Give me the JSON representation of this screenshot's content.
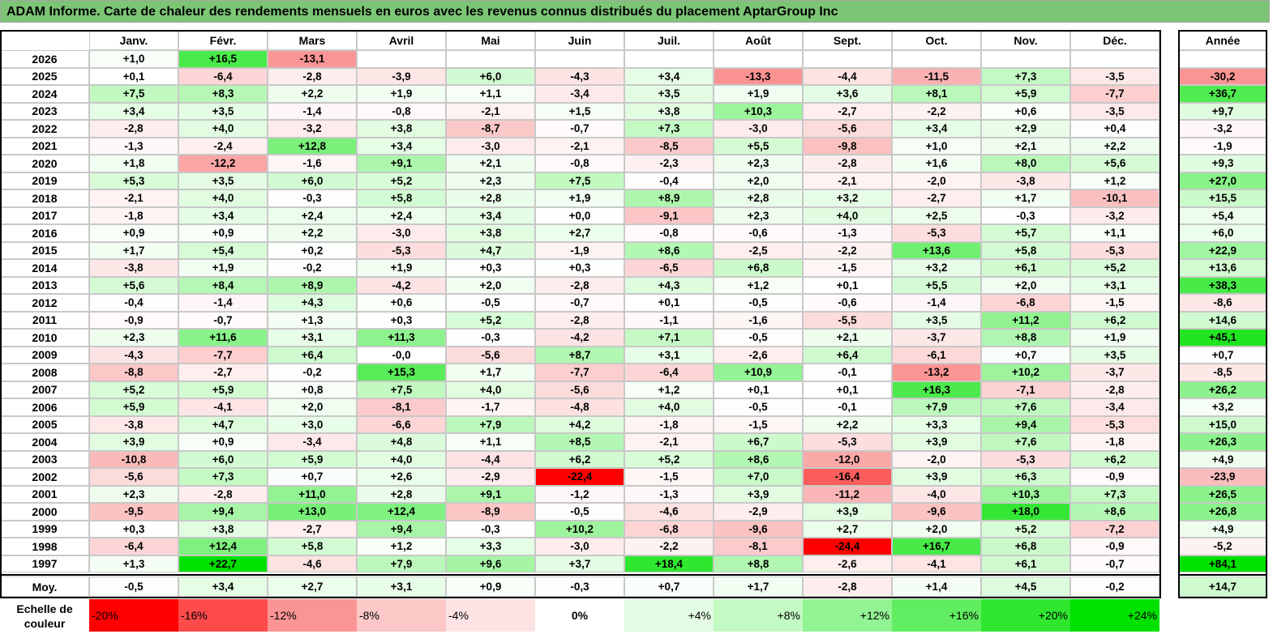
{
  "title": "ADAM Informe. Carte de chaleur des rendements mensuels en euros avec les revenus connus distribués du placement AptarGroup Inc",
  "chart_data": {
    "type": "heatmap",
    "months": [
      "Janv.",
      "Févr.",
      "Mars",
      "Avril",
      "Mai",
      "Juin",
      "Juil.",
      "Août",
      "Sept.",
      "Oct.",
      "Nov.",
      "Déc."
    ],
    "year_header": "Année",
    "rows": [
      {
        "label": "2026",
        "months": [
          "+1,0",
          "+16,5",
          "-13,1",
          "",
          "",
          "",
          "",
          "",
          "",
          "",
          "",
          ""
        ],
        "year": ""
      },
      {
        "label": "2025",
        "months": [
          "+0,1",
          "-6,4",
          "-2,8",
          "-3,9",
          "+6,0",
          "-4,3",
          "+3,4",
          "-13,3",
          "-4,4",
          "-11,5",
          "+7,3",
          "-3,5"
        ],
        "year": "-30,2"
      },
      {
        "label": "2024",
        "months": [
          "+7,5",
          "+8,3",
          "+2,2",
          "+1,9",
          "+1,1",
          "-3,4",
          "+3,5",
          "+1,9",
          "+3,6",
          "+8,1",
          "+5,9",
          "-7,7"
        ],
        "year": "+36,7"
      },
      {
        "label": "2023",
        "months": [
          "+3,4",
          "+3,5",
          "-1,4",
          "-0,8",
          "-2,1",
          "+1,5",
          "+3,8",
          "+10,3",
          "-2,7",
          "-2,2",
          "+0,6",
          "-3,5"
        ],
        "year": "+9,7"
      },
      {
        "label": "2022",
        "months": [
          "-2,8",
          "+4,0",
          "-3,2",
          "+3,8",
          "-8,7",
          "-0,7",
          "+7,3",
          "-3,0",
          "-5,6",
          "+3,4",
          "+2,9",
          "+0,4"
        ],
        "year": "-3,2"
      },
      {
        "label": "2021",
        "months": [
          "-1,3",
          "-2,4",
          "+12,8",
          "+3,4",
          "-3,0",
          "-2,1",
          "-8,5",
          "+5,5",
          "-9,8",
          "+1,0",
          "+2,1",
          "+2,2"
        ],
        "year": "-1,9"
      },
      {
        "label": "2020",
        "months": [
          "+1,8",
          "-12,2",
          "-1,6",
          "+9,1",
          "+2,1",
          "-0,8",
          "-2,3",
          "+2,3",
          "-2,8",
          "+1,6",
          "+8,0",
          "+5,6"
        ],
        "year": "+9,3"
      },
      {
        "label": "2019",
        "months": [
          "+5,3",
          "+3,5",
          "+6,0",
          "+5,2",
          "+2,3",
          "+7,5",
          "-0,4",
          "+2,0",
          "-2,1",
          "-2,0",
          "-3,8",
          "+1,2"
        ],
        "year": "+27,0"
      },
      {
        "label": "2018",
        "months": [
          "-2,1",
          "+4,0",
          "-0,3",
          "+5,8",
          "+2,8",
          "+1,9",
          "+8,9",
          "+2,8",
          "+3,2",
          "-2,7",
          "+1,7",
          "-10,1"
        ],
        "year": "+15,5"
      },
      {
        "label": "2017",
        "months": [
          "-1,8",
          "+3,4",
          "+2,4",
          "+2,4",
          "+3,4",
          "+0,0",
          "-9,1",
          "+2,3",
          "+4,0",
          "+2,5",
          "-0,3",
          "-3,2"
        ],
        "year": "+5,4"
      },
      {
        "label": "2016",
        "months": [
          "+0,9",
          "+0,9",
          "+2,2",
          "-3,0",
          "+3,8",
          "+2,7",
          "-0,8",
          "-0,6",
          "-1,3",
          "-5,3",
          "+5,7",
          "+1,1"
        ],
        "year": "+6,0"
      },
      {
        "label": "2015",
        "months": [
          "+1,7",
          "+5,4",
          "+0,2",
          "-5,3",
          "+4,7",
          "-1,9",
          "+8,6",
          "-2,5",
          "-2,2",
          "+13,6",
          "+5,8",
          "-5,3"
        ],
        "year": "+22,9"
      },
      {
        "label": "2014",
        "months": [
          "-3,8",
          "+1,9",
          "-0,2",
          "+1,9",
          "+0,3",
          "+0,3",
          "-6,5",
          "+6,8",
          "-1,5",
          "+3,2",
          "+6,1",
          "+5,2"
        ],
        "year": "+13,6"
      },
      {
        "label": "2013",
        "months": [
          "+5,6",
          "+8,4",
          "+8,9",
          "-4,2",
          "+2,0",
          "-2,8",
          "+4,3",
          "+1,2",
          "+0,1",
          "+5,5",
          "+2,0",
          "+3,1"
        ],
        "year": "+38,3"
      },
      {
        "label": "2012",
        "months": [
          "-0,4",
          "-1,4",
          "+4,3",
          "+0,6",
          "-0,5",
          "-0,7",
          "+0,1",
          "-0,5",
          "-0,6",
          "-1,4",
          "-6,8",
          "-1,5"
        ],
        "year": "-8,6"
      },
      {
        "label": "2011",
        "months": [
          "-0,9",
          "-0,7",
          "+1,3",
          "+0,3",
          "+5,2",
          "-2,8",
          "-1,1",
          "-1,6",
          "-5,5",
          "+3,5",
          "+11,2",
          "+6,2"
        ],
        "year": "+14,6"
      },
      {
        "label": "2010",
        "months": [
          "+2,3",
          "+11,6",
          "+3,1",
          "+11,3",
          "-0,3",
          "-4,2",
          "+7,1",
          "-0,5",
          "+2,1",
          "-3,7",
          "+8,8",
          "+1,9"
        ],
        "year": "+45,1"
      },
      {
        "label": "2009",
        "months": [
          "-4,3",
          "-7,7",
          "+6,4",
          "-0,0",
          "-5,6",
          "+8,7",
          "+3,1",
          "-2,6",
          "+6,4",
          "-6,1",
          "+0,7",
          "+3,5"
        ],
        "year": "+0,7"
      },
      {
        "label": "2008",
        "months": [
          "-8,8",
          "-2,7",
          "-0,2",
          "+15,3",
          "+1,7",
          "-7,7",
          "-6,4",
          "+10,9",
          "-0,1",
          "-13,2",
          "+10,2",
          "-3,7"
        ],
        "year": "-8,5"
      },
      {
        "label": "2007",
        "months": [
          "+5,2",
          "+5,9",
          "+0,8",
          "+7,5",
          "+4,0",
          "-5,6",
          "+1,2",
          "+0,1",
          "+0,1",
          "+16,3",
          "-7,1",
          "-2,8"
        ],
        "year": "+26,2"
      },
      {
        "label": "2006",
        "months": [
          "+5,9",
          "-4,1",
          "+2,0",
          "-8,1",
          "-1,7",
          "-4,8",
          "+4,0",
          "-0,5",
          "-0,1",
          "+7,9",
          "+7,6",
          "-3,4"
        ],
        "year": "+3,2"
      },
      {
        "label": "2005",
        "months": [
          "-3,8",
          "+4,7",
          "+3,0",
          "-6,6",
          "+7,9",
          "+4,2",
          "-1,8",
          "-1,5",
          "+2,2",
          "+3,3",
          "+9,4",
          "-5,3"
        ],
        "year": "+15,0"
      },
      {
        "label": "2004",
        "months": [
          "+3,9",
          "+0,9",
          "-3,4",
          "+4,8",
          "+1,1",
          "+8,5",
          "-2,1",
          "+6,7",
          "-5,3",
          "+3,9",
          "+7,6",
          "-1,8"
        ],
        "year": "+26,3"
      },
      {
        "label": "2003",
        "months": [
          "-10,8",
          "+6,0",
          "+5,9",
          "+4,0",
          "-4,4",
          "+6,2",
          "+5,2",
          "+8,6",
          "-12,0",
          "-2,0",
          "-5,3",
          "+6,2"
        ],
        "year": "+4,9"
      },
      {
        "label": "2002",
        "months": [
          "-5,6",
          "+7,3",
          "+0,7",
          "+2,6",
          "-2,9",
          "-22,4",
          "-1,5",
          "+7,0",
          "-16,4",
          "+3,9",
          "+6,3",
          "-0,9"
        ],
        "year": "-23,9"
      },
      {
        "label": "2001",
        "months": [
          "+2,3",
          "-2,8",
          "+11,0",
          "+2,8",
          "+9,1",
          "-1,2",
          "-1,3",
          "+3,9",
          "-11,2",
          "-4,0",
          "+10,3",
          "+7,3"
        ],
        "year": "+26,5"
      },
      {
        "label": "2000",
        "months": [
          "-9,5",
          "+9,4",
          "+13,0",
          "+12,4",
          "-8,9",
          "-0,5",
          "-4,6",
          "-2,9",
          "+3,9",
          "-9,6",
          "+18,0",
          "+8,6"
        ],
        "year": "+26,8"
      },
      {
        "label": "1999",
        "months": [
          "+0,3",
          "+3,8",
          "-2,7",
          "+9,4",
          "-0,3",
          "+10,2",
          "-6,8",
          "-9,6",
          "+2,7",
          "+2,0",
          "+5,2",
          "-7,2"
        ],
        "year": "+4,9"
      },
      {
        "label": "1998",
        "months": [
          "-6,4",
          "+12,4",
          "+5,8",
          "+1,2",
          "+3,3",
          "-3,0",
          "-2,2",
          "-8,1",
          "-24,4",
          "+16,7",
          "+6,8",
          "-0,9"
        ],
        "year": "-5,2"
      },
      {
        "label": "1997",
        "months": [
          "+1,3",
          "+22,7",
          "-4,6",
          "+7,9",
          "+9,6",
          "+3,7",
          "+18,4",
          "+8,8",
          "-2,6",
          "-4,1",
          "+6,1",
          "-0,7"
        ],
        "year": "+84,1"
      }
    ],
    "average": {
      "label": "Moy.",
      "months": [
        "-0,5",
        "+3,4",
        "+2,7",
        "+3,1",
        "+0,9",
        "-0,3",
        "+0,7",
        "+1,7",
        "-2,8",
        "+1,4",
        "+4,5",
        "-0,2"
      ],
      "year": "+14,7"
    },
    "scale_label": "Echelle de couleur",
    "scale": [
      "-20%",
      "-16%",
      "-12%",
      "-8%",
      "-4%",
      "0%",
      "+4%",
      "+8%",
      "+12%",
      "+16%",
      "+20%",
      "+24%"
    ]
  }
}
